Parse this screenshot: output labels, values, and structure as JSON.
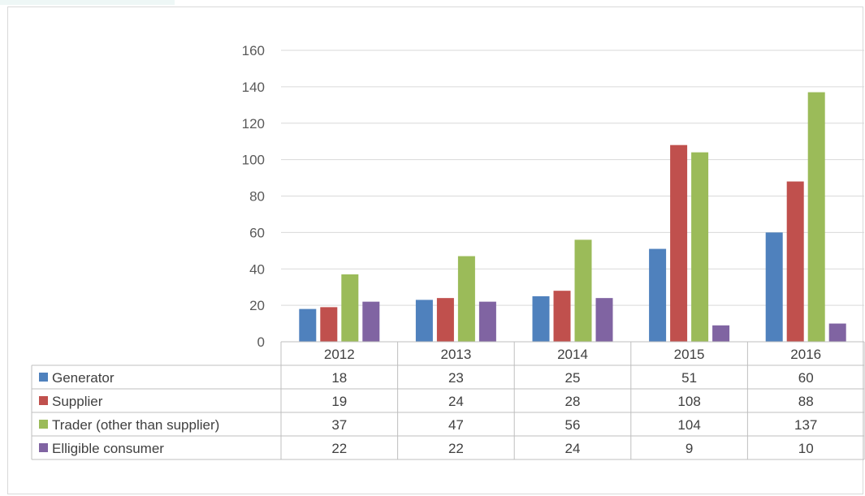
{
  "chart_data": {
    "type": "bar",
    "categories": [
      "2012",
      "2013",
      "2014",
      "2015",
      "2016"
    ],
    "series": [
      {
        "name": "Generator",
        "values": [
          18,
          23,
          25,
          51,
          60
        ],
        "color": "#4f81bd"
      },
      {
        "name": "Supplier",
        "values": [
          19,
          24,
          28,
          108,
          88
        ],
        "color": "#c0504d"
      },
      {
        "name": "Trader (other than supplier)",
        "values": [
          37,
          47,
          56,
          104,
          137
        ],
        "color": "#9bbb59"
      },
      {
        "name": "Elligible consumer",
        "values": [
          22,
          22,
          24,
          9,
          10
        ],
        "color": "#8064a2"
      }
    ],
    "y_ticks": [
      "0",
      "20",
      "40",
      "60",
      "80",
      "100",
      "120",
      "140",
      "160"
    ],
    "ylim": [
      0,
      160
    ],
    "grid": true,
    "legend": "data table below chart"
  }
}
